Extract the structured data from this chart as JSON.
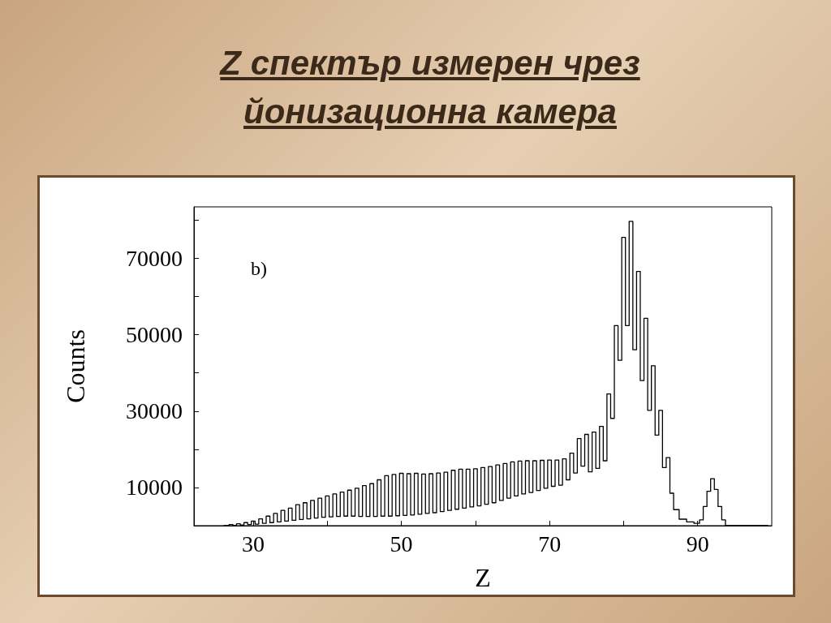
{
  "chart_data": {
    "type": "step",
    "title": "Z спектър измерен чрез йонизационна камера",
    "xlabel": "Z",
    "ylabel": "Counts",
    "annotations": [
      "b)"
    ],
    "x": [
      26,
      26.5,
      27,
      27.5,
      28,
      28.5,
      29,
      29.5,
      30,
      30.5,
      31,
      31.5,
      32,
      32.5,
      33,
      33.5,
      34,
      34.5,
      35,
      35.5,
      36,
      36.5,
      37,
      37.5,
      38,
      38.5,
      39,
      39.5,
      40,
      40.5,
      41,
      41.5,
      42,
      42.5,
      43,
      43.5,
      44,
      44.5,
      45,
      45.5,
      46,
      46.5,
      47,
      47.5,
      48,
      48.5,
      49,
      49.5,
      50,
      50.5,
      51,
      51.5,
      52,
      52.5,
      53,
      53.5,
      54,
      54.5,
      55,
      55.5,
      56,
      56.5,
      57,
      57.5,
      58,
      58.5,
      59,
      59.5,
      60,
      60.5,
      61,
      61.5,
      62,
      62.5,
      63,
      63.5,
      64,
      64.5,
      65,
      65.5,
      66,
      66.5,
      67,
      67.5,
      68,
      68.5,
      69,
      69.5,
      70,
      70.5,
      71,
      71.5,
      72,
      72.5,
      73,
      73.5,
      74,
      74.5,
      75,
      75.5,
      76,
      76.5,
      77,
      77.5,
      78,
      78.5,
      79,
      79.5,
      80,
      80.5,
      81,
      81.5,
      82,
      82.5,
      83,
      83.5,
      84,
      84.5,
      85,
      85.5,
      86,
      86.5,
      87,
      88,
      89,
      90,
      90.5,
      91,
      91.5,
      92,
      92.5,
      93,
      93.5,
      94,
      99.5
    ],
    "values": [
      0,
      0,
      300,
      100,
      500,
      200,
      800,
      300,
      1200,
      400,
      1800,
      600,
      2500,
      800,
      3200,
      1000,
      4000,
      1200,
      4600,
      1400,
      5500,
      1600,
      6000,
      1800,
      6600,
      2000,
      7200,
      2200,
      7800,
      2300,
      8300,
      2400,
      8800,
      2500,
      9300,
      2500,
      9800,
      2400,
      10500,
      2400,
      11000,
      2400,
      12000,
      2500,
      13100,
      2500,
      13400,
      2600,
      13700,
      2700,
      13600,
      2800,
      13700,
      3000,
      13500,
      3200,
      13600,
      3400,
      13800,
      3700,
      14000,
      4000,
      14500,
      4300,
      14800,
      4600,
      14800,
      4900,
      14900,
      5200,
      15200,
      5600,
      15500,
      6000,
      15900,
      6600,
      16300,
      7200,
      16700,
      7800,
      16900,
      8300,
      17000,
      8700,
      17000,
      9200,
      17100,
      9800,
      17200,
      10300,
      17200,
      10600,
      17500,
      12000,
      19000,
      13800,
      22800,
      15600,
      23900,
      14100,
      24500,
      15000,
      26000,
      17000,
      34500,
      28100,
      52400,
      43300,
      75500,
      52400,
      79700,
      46100,
      66600,
      38000,
      54300,
      30200,
      41900,
      23700,
      30200,
      15200,
      17800,
      8500,
      4200,
      1700,
      1000,
      600,
      1500,
      5000,
      9000,
      12300,
      9500,
      5000,
      1500,
      0,
      0
    ],
    "color": "#000000",
    "xlim": [
      22,
      100
    ],
    "xticks": [
      30,
      {
        "value": 40,
        "label": null
      },
      50,
      {
        "value": 60,
        "label": null
      },
      70,
      {
        "value": 80,
        "label": null
      },
      90
    ],
    "ylim": [
      0,
      83500
    ],
    "yticks": [
      {
        "value": 0,
        "label": null
      },
      10000,
      {
        "value": 20000,
        "label": null
      },
      30000,
      {
        "value": 40000,
        "label": null
      },
      50000,
      {
        "value": 60000,
        "label": null
      },
      70000,
      {
        "value": 80000,
        "label": null
      }
    ],
    "grid": false,
    "marker": "none",
    "line_style": "solid"
  }
}
